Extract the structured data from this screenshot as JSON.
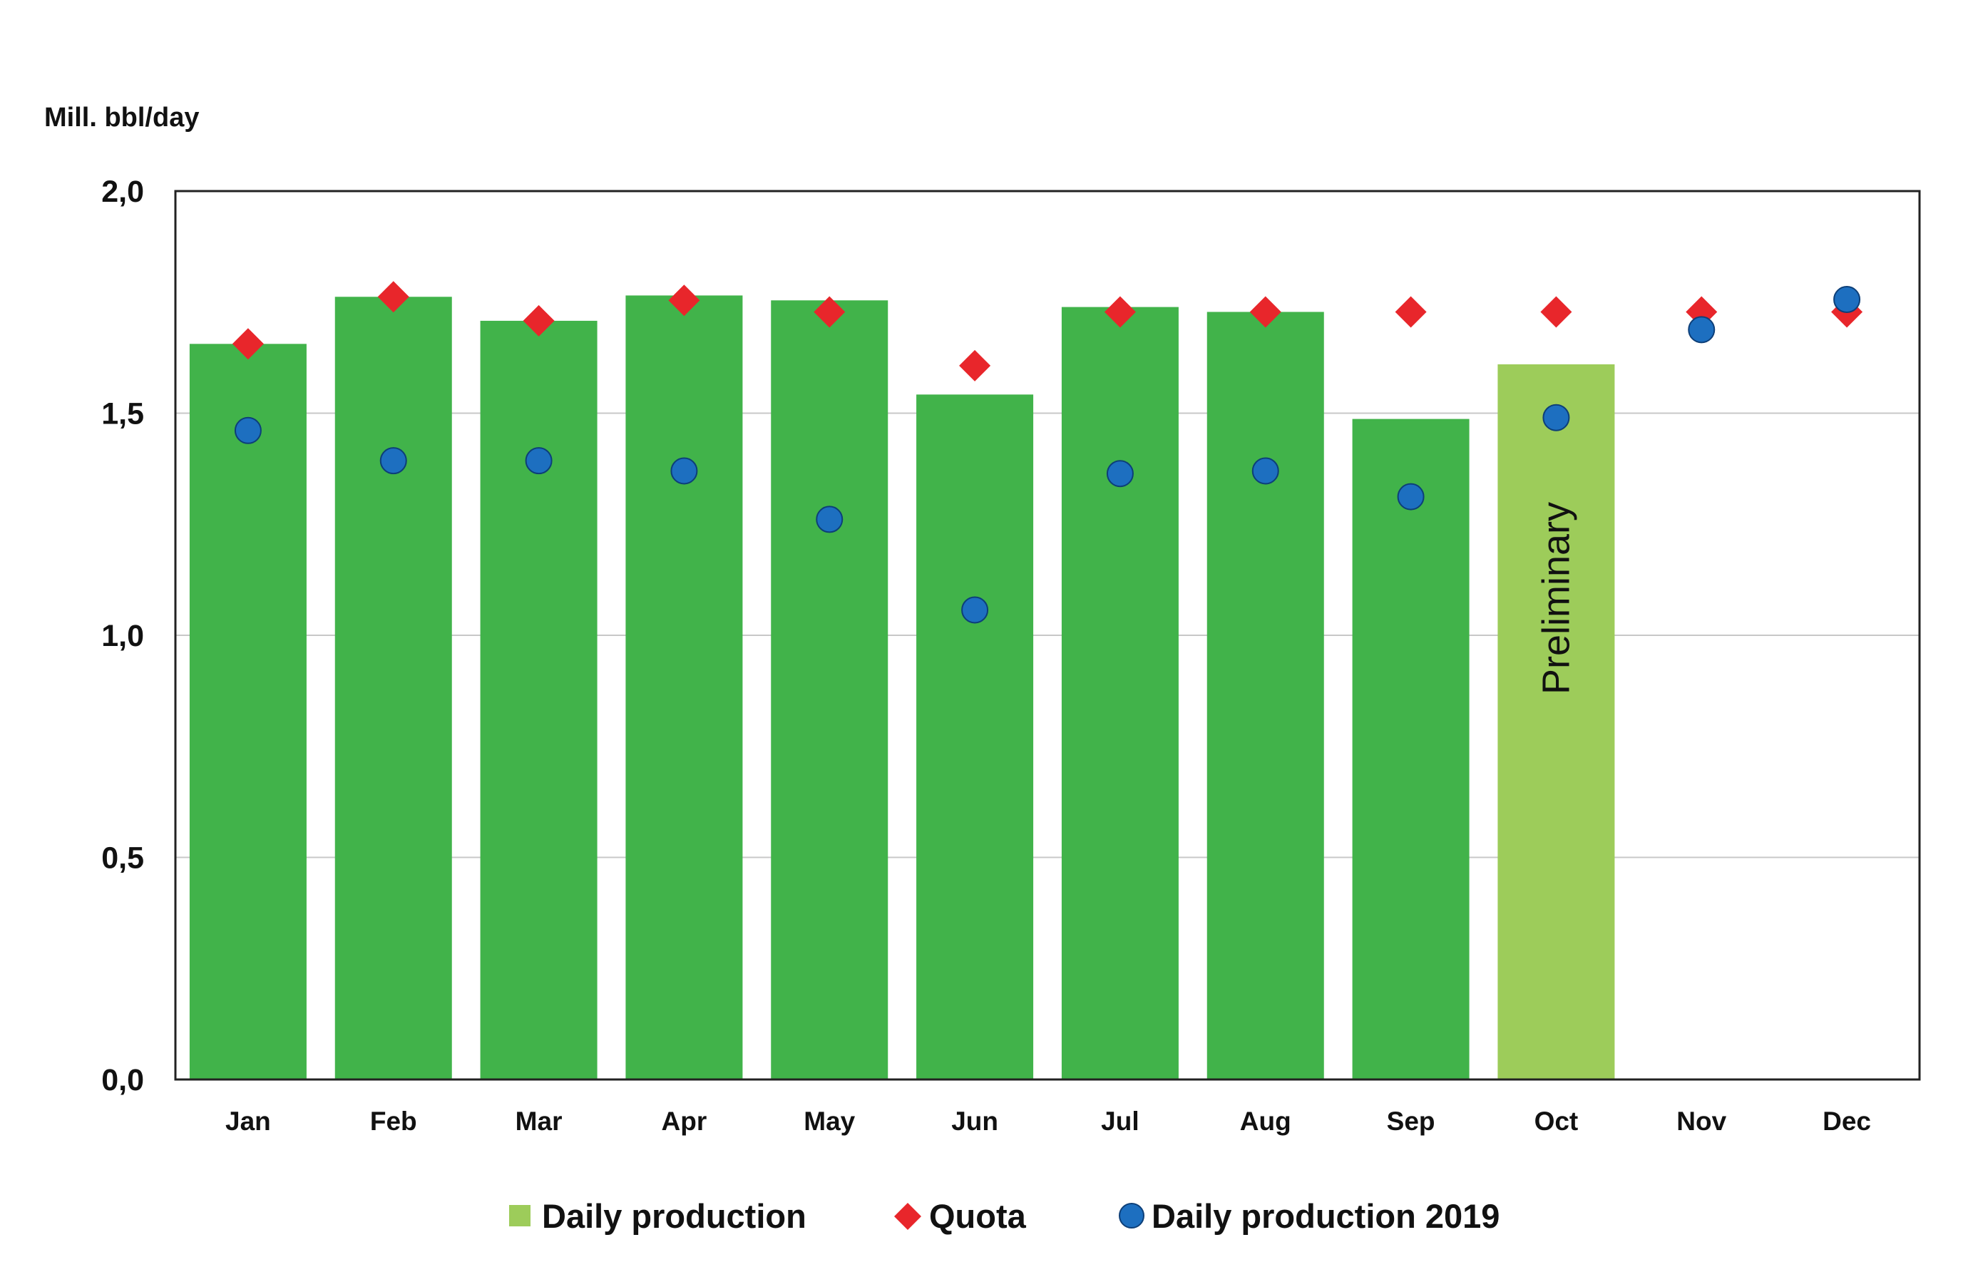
{
  "chart_data": {
    "type": "bar",
    "ylabel": "Mill. bbl/day",
    "ylim": [
      0,
      2.0
    ],
    "yticks": [
      "0,0",
      "0,5",
      "1,0",
      "1,5",
      "2,0"
    ],
    "ytick_values": [
      0,
      0.5,
      1.0,
      1.5,
      2.0
    ],
    "grid": true,
    "categories": [
      "Jan",
      "Feb",
      "Mar",
      "Apr",
      "May",
      "Jun",
      "Jul",
      "Aug",
      "Sep",
      "Oct",
      "Nov",
      "Dec"
    ],
    "series": [
      {
        "name": "Daily production",
        "type": "bar",
        "color": "#41b34a",
        "preliminary_color": "#9dcc5a",
        "values": [
          1.656,
          1.762,
          1.708,
          1.765,
          1.754,
          1.542,
          1.739,
          1.728,
          1.487,
          1.61,
          null,
          null
        ]
      },
      {
        "name": "Quota",
        "type": "scatter",
        "marker": "diamond",
        "color": "#e8262b",
        "values": [
          1.656,
          1.762,
          1.708,
          1.754,
          1.728,
          1.607,
          1.728,
          1.728,
          1.728,
          1.728,
          1.728,
          1.728
        ]
      },
      {
        "name": "Daily production 2019",
        "type": "scatter",
        "marker": "circle",
        "color": "#1d6fc0",
        "values": [
          1.461,
          1.393,
          1.393,
          1.37,
          1.261,
          1.057,
          1.364,
          1.37,
          1.312,
          1.49,
          1.688,
          1.756
        ]
      }
    ],
    "preliminary_index": 9,
    "annotation": "Preliminary",
    "legend_position": "bottom"
  }
}
